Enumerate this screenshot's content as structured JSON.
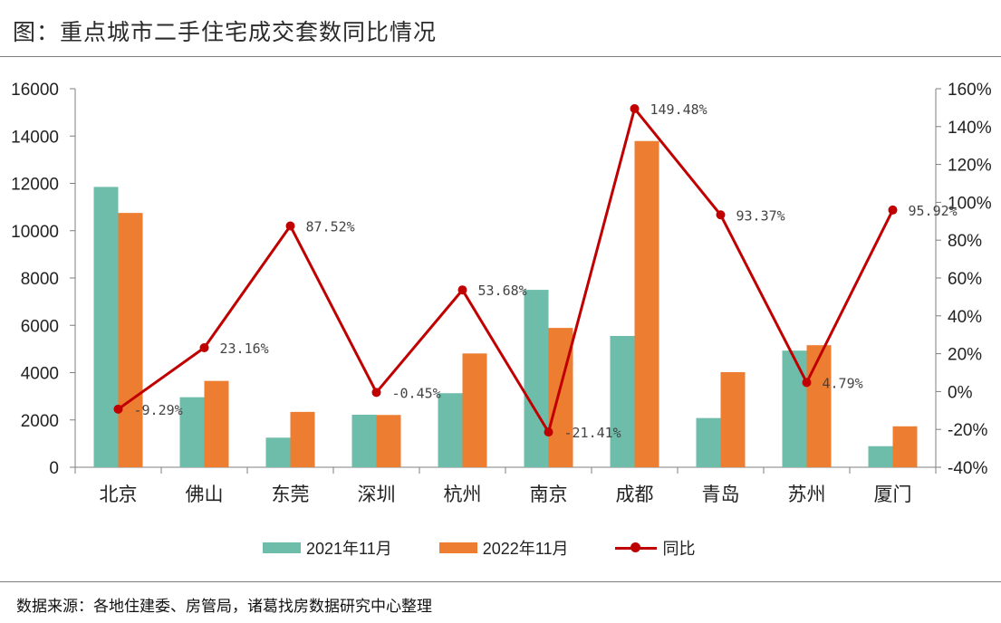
{
  "header": {
    "title": "图：重点城市二手住宅成交套数同比情况"
  },
  "footer": {
    "source": "数据来源：各地住建委、房管局，诸葛找房数据研究中心整理"
  },
  "legend": {
    "series1": "2021年11月",
    "series2": "2022年11月",
    "series3": "同比"
  },
  "colors": {
    "series1": "#6dbdaa",
    "series2": "#ed7d31",
    "line": "#c00000",
    "axis": "#7f7f7f"
  },
  "chart_data": {
    "type": "bar",
    "categories": [
      "北京",
      "佛山",
      "东莞",
      "深圳",
      "杭州",
      "南京",
      "成都",
      "青岛",
      "苏州",
      "厦门"
    ],
    "series": [
      {
        "name": "2021年11月",
        "type": "bar",
        "axis": "left",
        "values": [
          11850,
          2960,
          1250,
          2220,
          3130,
          7500,
          5550,
          2080,
          4930,
          890
        ]
      },
      {
        "name": "2022年11月",
        "type": "bar",
        "axis": "left",
        "values": [
          10750,
          3650,
          2340,
          2210,
          4810,
          5890,
          13790,
          4020,
          5160,
          1730
        ]
      },
      {
        "name": "同比",
        "type": "line",
        "axis": "right",
        "values": [
          -9.29,
          23.16,
          87.52,
          -0.45,
          53.68,
          -21.41,
          149.48,
          93.37,
          4.79,
          95.92
        ],
        "labels": [
          "-9.29%",
          "23.16%",
          "87.52%",
          "-0.45%",
          "53.68%",
          "-21.41%",
          "149.48%",
          "93.37%",
          "4.79%",
          "95.92%"
        ]
      }
    ],
    "y_left": {
      "min": 0,
      "max": 16000,
      "ticks": [
        "0",
        "2000",
        "4000",
        "6000",
        "8000",
        "10000",
        "12000",
        "14000",
        "16000"
      ]
    },
    "y_right": {
      "min": -40,
      "max": 160,
      "ticks": [
        "-40%",
        "-20%",
        "0%",
        "20%",
        "40%",
        "60%",
        "80%",
        "100%",
        "120%",
        "140%",
        "160%"
      ]
    },
    "grid": false,
    "legend_position": "bottom"
  }
}
